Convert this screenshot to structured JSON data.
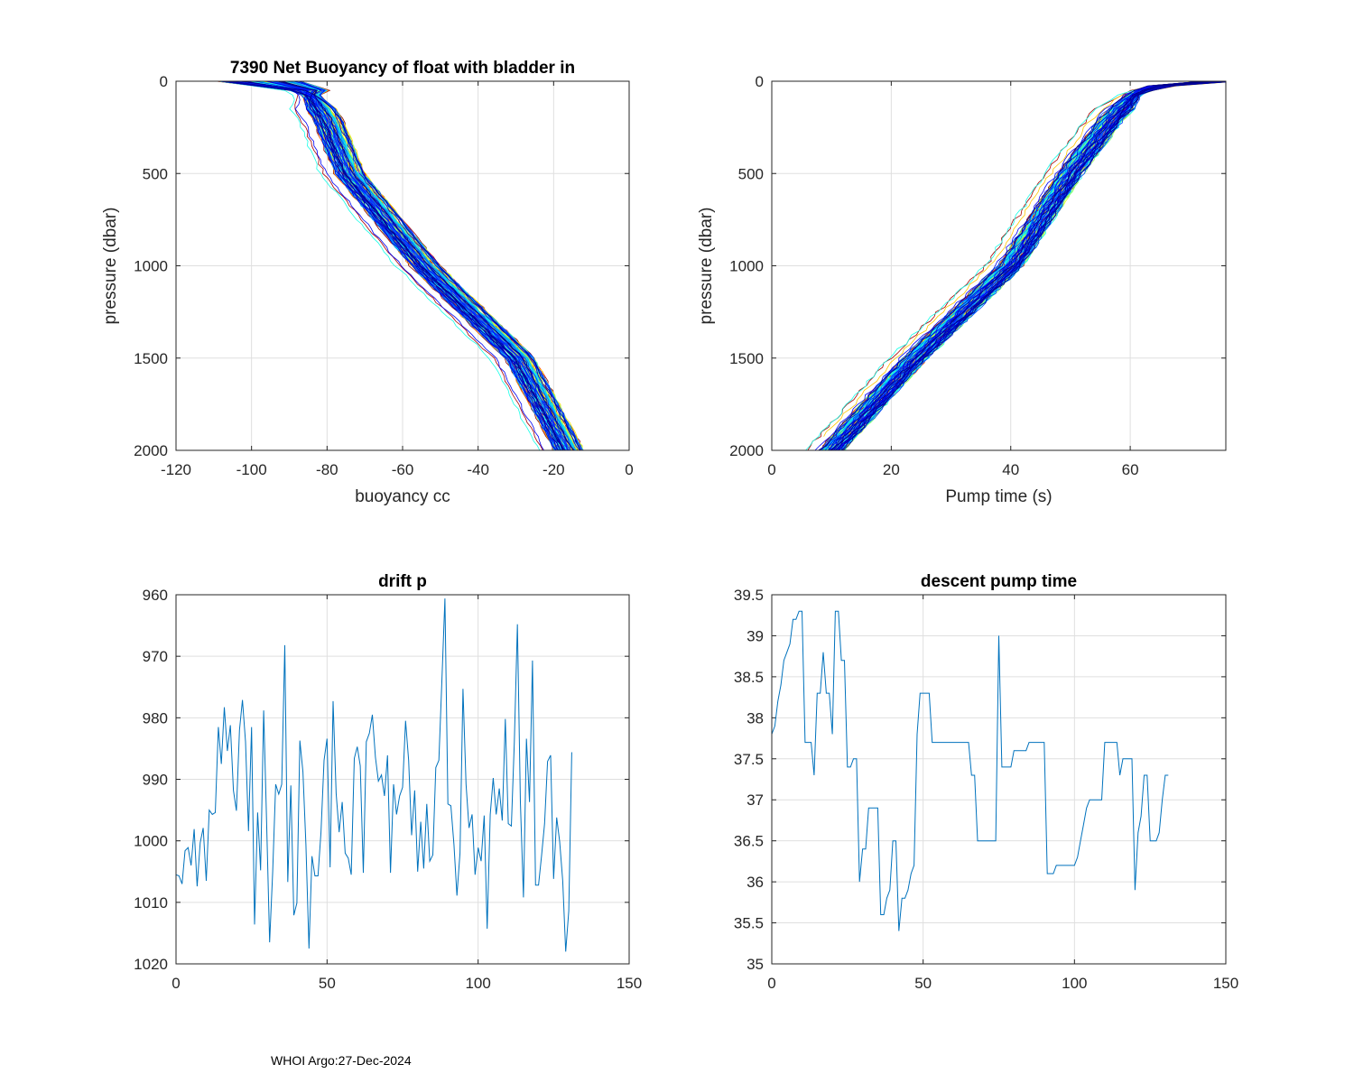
{
  "footer": "WHOI Argo:27-Dec-2024",
  "chart_data": [
    {
      "type": "line",
      "title": "7390 Net Buoyancy of float with bladder in",
      "xlabel": "buoyancy cc",
      "ylabel": "pressure (dbar)",
      "xlim": [
        -120,
        0
      ],
      "ylim": [
        0,
        2000
      ],
      "y_reversed": true,
      "xticks": [
        -120,
        -100,
        -80,
        -60,
        -40,
        -20,
        0
      ],
      "yticks": [
        0,
        500,
        1000,
        1500,
        2000
      ],
      "grid": true,
      "colormap": "jet",
      "n_profiles": 132,
      "base_profile": {
        "pressure": [
          0,
          50,
          200,
          500,
          1000,
          1500,
          2000
        ],
        "value": [
          -98,
          -85,
          -80,
          -74,
          -54,
          -29,
          -16
        ]
      },
      "profile_spread": 4
    },
    {
      "type": "line",
      "title": "",
      "xlabel": "Pump time (s)",
      "ylabel": "pressure (dbar)",
      "xlim": [
        0,
        76
      ],
      "ylim": [
        0,
        2000
      ],
      "y_reversed": true,
      "xticks": [
        0,
        20,
        40,
        60
      ],
      "yticks": [
        0,
        500,
        1000,
        1500,
        2000
      ],
      "grid": true,
      "colormap": "jet",
      "n_profiles": 132,
      "base_profile": {
        "pressure": [
          0,
          20,
          60,
          200,
          500,
          1000,
          1500,
          2000
        ],
        "value": [
          75,
          66,
          61,
          57,
          50,
          40,
          24,
          10
        ]
      },
      "profile_spread": 2
    },
    {
      "type": "line",
      "title": "drift p",
      "xlabel": "",
      "ylabel": "",
      "xlim": [
        0,
        150
      ],
      "ylim": [
        960,
        1020
      ],
      "y_reversed": true,
      "xticks": [
        0,
        50,
        100,
        150
      ],
      "yticks": [
        960,
        970,
        980,
        990,
        1000,
        1010,
        1020
      ],
      "grid": true,
      "color": "#0072bd",
      "values": [
        1005.5,
        1005.7,
        1007,
        1001.6,
        1001.1,
        1004,
        998.1,
        1007.4,
        1000.3,
        997.9,
        1006.5,
        995,
        995.7,
        995.4,
        981.5,
        987.5,
        978.3,
        985.4,
        981.2,
        991.8,
        995.1,
        982,
        977.1,
        983.9,
        998.4,
        981.5,
        1013.6,
        995.4,
        1004.8,
        978.8,
        997.2,
        1016.5,
        1005,
        990.8,
        992.4,
        990.8,
        968.2,
        1006.7,
        991,
        1012.1,
        1010.1,
        983.7,
        988.8,
        1000.6,
        1017.5,
        1002.5,
        1005.7,
        1005.7,
        998.6,
        986.9,
        983.4,
        1004.3,
        977.3,
        992.3,
        998.6,
        993.7,
        1002,
        1002.8,
        1005.5,
        986.6,
        984.7,
        987.8,
        1005.2,
        983.9,
        982.5,
        979.5,
        986.4,
        990.3,
        989.3,
        992.7,
        986.1,
        1005.2,
        990.8,
        995.7,
        992.7,
        991.3,
        980.5,
        986.9,
        999.1,
        991.8,
        1005,
        996.9,
        1004.5,
        994,
        1003.3,
        1002.3,
        988.1,
        986.9,
        974.1,
        960.6,
        994,
        994.3,
        1000.6,
        1008.9,
        1002,
        975.3,
        990.8,
        997.9,
        995.7,
        1005.5,
        1001.1,
        1003.3,
        995.9,
        1014.3,
        995.7,
        989.8,
        995.7,
        991.5,
        996.7,
        980.2,
        997.2,
        997.6,
        983.9,
        964.8,
        993.7,
        1009.2,
        983.4,
        993.7,
        970.7,
        1007.2,
        1007.2,
        1002.5,
        997.2,
        987.1,
        986.1,
        1006.2,
        996.2,
        1000.1,
        1006.5,
        1018,
        1011.4,
        985.6
      ]
    },
    {
      "type": "line",
      "title": "descent pump time",
      "xlabel": "",
      "ylabel": "",
      "xlim": [
        0,
        150
      ],
      "ylim": [
        35,
        39.5
      ],
      "xticks": [
        0,
        50,
        100,
        150
      ],
      "yticks": [
        35,
        35.5,
        36,
        36.5,
        37,
        37.5,
        38,
        38.5,
        39,
        39.5
      ],
      "grid": true,
      "color": "#0072bd",
      "values": [
        37.8,
        37.9,
        38.2,
        38.4,
        38.7,
        38.8,
        38.9,
        39.2,
        39.2,
        39.3,
        39.3,
        37.7,
        37.7,
        37.7,
        37.3,
        38.3,
        38.3,
        38.8,
        38.3,
        38.3,
        37.8,
        39.3,
        39.3,
        38.7,
        38.7,
        37.4,
        37.4,
        37.5,
        37.5,
        36.0,
        36.4,
        36.4,
        36.9,
        36.9,
        36.9,
        36.9,
        35.6,
        35.6,
        35.8,
        35.9,
        36.5,
        36.5,
        35.4,
        35.8,
        35.8,
        35.9,
        36.1,
        36.2,
        37.8,
        38.3,
        38.3,
        38.3,
        38.3,
        37.7,
        37.7,
        37.7,
        37.7,
        37.7,
        37.7,
        37.7,
        37.7,
        37.7,
        37.7,
        37.7,
        37.7,
        37.7,
        37.3,
        37.3,
        36.5,
        36.5,
        36.5,
        36.5,
        36.5,
        36.5,
        36.5,
        39.0,
        37.4,
        37.4,
        37.4,
        37.4,
        37.6,
        37.6,
        37.6,
        37.6,
        37.6,
        37.7,
        37.7,
        37.7,
        37.7,
        37.7,
        37.7,
        36.1,
        36.1,
        36.1,
        36.2,
        36.2,
        36.2,
        36.2,
        36.2,
        36.2,
        36.2,
        36.3,
        36.5,
        36.7,
        36.9,
        37.0,
        37.0,
        37.0,
        37.0,
        37.0,
        37.7,
        37.7,
        37.7,
        37.7,
        37.7,
        37.3,
        37.5,
        37.5,
        37.5,
        37.5,
        35.9,
        36.6,
        36.8,
        37.3,
        37.3,
        36.5,
        36.5,
        36.5,
        36.6,
        37.0,
        37.3,
        37.3
      ]
    }
  ]
}
